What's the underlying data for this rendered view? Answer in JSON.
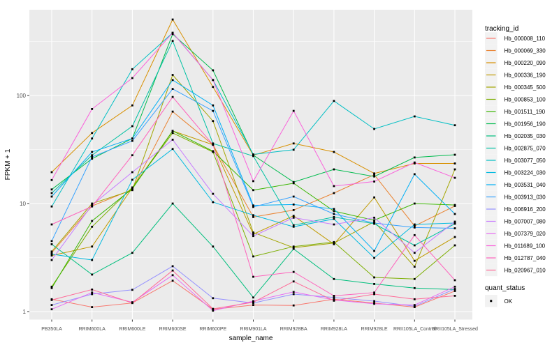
{
  "chart_data": {
    "type": "line",
    "title": "",
    "xlabel": "sample_name",
    "ylabel": "FPKM + 1",
    "yscale": "log10",
    "ylim": [
      1,
      600
    ],
    "yticks": [
      "1",
      "10",
      "100"
    ],
    "grid": "white major+minor on gray panel",
    "legend_position": "right",
    "legend_title": "tracking_id",
    "quant_legend": {
      "title": "quant_status",
      "items": [
        "OK"
      ],
      "marker": "black-square"
    },
    "categories": [
      "PB350LA",
      "RRIM600LA",
      "RRIM600LE",
      "RRIM600SE",
      "RRIM600PE",
      "RRIM901LA",
      "RRIM928BA",
      "RRIM928LA",
      "RRIM928LE",
      "RRII105LA_Control",
      "RRII105LA_Stressed"
    ],
    "series": [
      {
        "name": "Hb_000008_110",
        "color": "#F8766D",
        "values": [
          1.3,
          1.1,
          1.2,
          1.93,
          1.05,
          1.15,
          1.14,
          1.3,
          1.2,
          1.1,
          1.55
        ]
      },
      {
        "name": "Hb_000069_330",
        "color": "#EA8331",
        "values": [
          3.5,
          9.5,
          13.5,
          71,
          35,
          7.5,
          8.7,
          12.5,
          18.5,
          6.2,
          9.5
        ]
      },
      {
        "name": "Hb_000220_090",
        "color": "#D89000",
        "values": [
          19.5,
          45,
          81,
          505,
          120,
          28,
          36,
          30,
          19,
          23.5,
          23.5
        ]
      },
      {
        "name": "Hb_000336_190",
        "color": "#C09B00",
        "values": [
          3.3,
          4.0,
          14.0,
          47,
          35,
          5.2,
          7.7,
          4.2,
          11.4,
          2.95,
          4.9
        ]
      },
      {
        "name": "Hb_000345_500",
        "color": "#A3A500",
        "values": [
          3.6,
          10.0,
          13.3,
          155,
          58,
          5.4,
          3.9,
          4.3,
          6.8,
          2.6,
          20.7
        ]
      },
      {
        "name": "Hb_000853_100",
        "color": "#7CAE00",
        "values": [
          1.7,
          6.1,
          14.1,
          45,
          30,
          3.24,
          4.0,
          4.4,
          2.07,
          2.0,
          4.1
        ]
      },
      {
        "name": "Hb_001511_190",
        "color": "#39B600",
        "values": [
          1.65,
          6.9,
          13.7,
          47,
          30.5,
          13.3,
          15.4,
          8.5,
          7.0,
          10.0,
          9.7
        ]
      },
      {
        "name": "Hb_001956_190",
        "color": "#00BB4E",
        "values": [
          13.5,
          26,
          40,
          370,
          171,
          28,
          15.8,
          20.7,
          17.8,
          26.7,
          28.3
        ]
      },
      {
        "name": "Hb_002035_030",
        "color": "#00BF7D",
        "values": [
          4.2,
          2.2,
          3.5,
          10.0,
          4.0,
          1.35,
          3.8,
          2.0,
          1.8,
          1.65,
          1.6
        ]
      },
      {
        "name": "Hb_002875_070",
        "color": "#00C1A3",
        "values": [
          12.5,
          28,
          52,
          320,
          36,
          27.5,
          6.3,
          7.5,
          6.5,
          4.1,
          6.5
        ]
      },
      {
        "name": "Hb_003077_050",
        "color": "#00BFC4",
        "values": [
          9.4,
          40,
          175,
          380,
          139,
          28.5,
          31.5,
          89,
          49,
          64,
          53
        ]
      },
      {
        "name": "Hb_003224_030",
        "color": "#00BAE0",
        "values": [
          3.4,
          3.0,
          16.6,
          32,
          10.3,
          7.8,
          6.1,
          7.2,
          3.14,
          6.4,
          6.6
        ]
      },
      {
        "name": "Hb_003531_040",
        "color": "#00B0F6",
        "values": [
          11.6,
          30,
          40,
          139,
          81,
          9.6,
          9.8,
          8.9,
          3.64,
          18.7,
          8.0
        ]
      },
      {
        "name": "Hb_003913_030",
        "color": "#35A2FF",
        "values": [
          4.5,
          27,
          38,
          115,
          72,
          9.3,
          11.6,
          8.0,
          6.6,
          6.0,
          5.9
        ]
      },
      {
        "name": "Hb_006916_200",
        "color": "#9590FF",
        "values": [
          1.15,
          1.45,
          1.59,
          2.63,
          1.33,
          1.2,
          1.45,
          1.35,
          1.25,
          1.12,
          1.62
        ]
      },
      {
        "name": "Hb_007007_080",
        "color": "#C77CFF",
        "values": [
          3.0,
          9.7,
          19.5,
          39,
          12.3,
          5.0,
          7.4,
          6.4,
          7.4,
          3.5,
          6.8
        ]
      },
      {
        "name": "Hb_007379_020",
        "color": "#E76BF3",
        "values": [
          1.05,
          1.5,
          1.22,
          2.17,
          1.02,
          1.25,
          1.52,
          1.28,
          1.18,
          1.15,
          1.7
        ]
      },
      {
        "name": "Hb_011689_100",
        "color": "#FA62DB",
        "values": [
          16.5,
          75,
          145,
          380,
          139,
          16.1,
          72,
          14.5,
          16.0,
          24.0,
          17.3
        ]
      },
      {
        "name": "Hb_012787_040",
        "color": "#FF62BC",
        "values": [
          6.4,
          9.4,
          28,
          97,
          35,
          2.1,
          2.33,
          1.4,
          1.5,
          5.1,
          1.95
        ]
      },
      {
        "name": "Hb_020967_010",
        "color": "#FF6A98",
        "values": [
          1.28,
          1.6,
          1.2,
          2.4,
          1.06,
          1.22,
          1.9,
          1.26,
          1.45,
          1.3,
          1.4
        ]
      }
    ]
  },
  "style": {
    "panel_bg": "#EBEBEB",
    "grid_color": "#FFFFFF",
    "point_color": "#000000",
    "tick_color": "#333333",
    "tick_label_color": "#4D4D4D",
    "legend_key_bg": "#F2F2F2"
  }
}
